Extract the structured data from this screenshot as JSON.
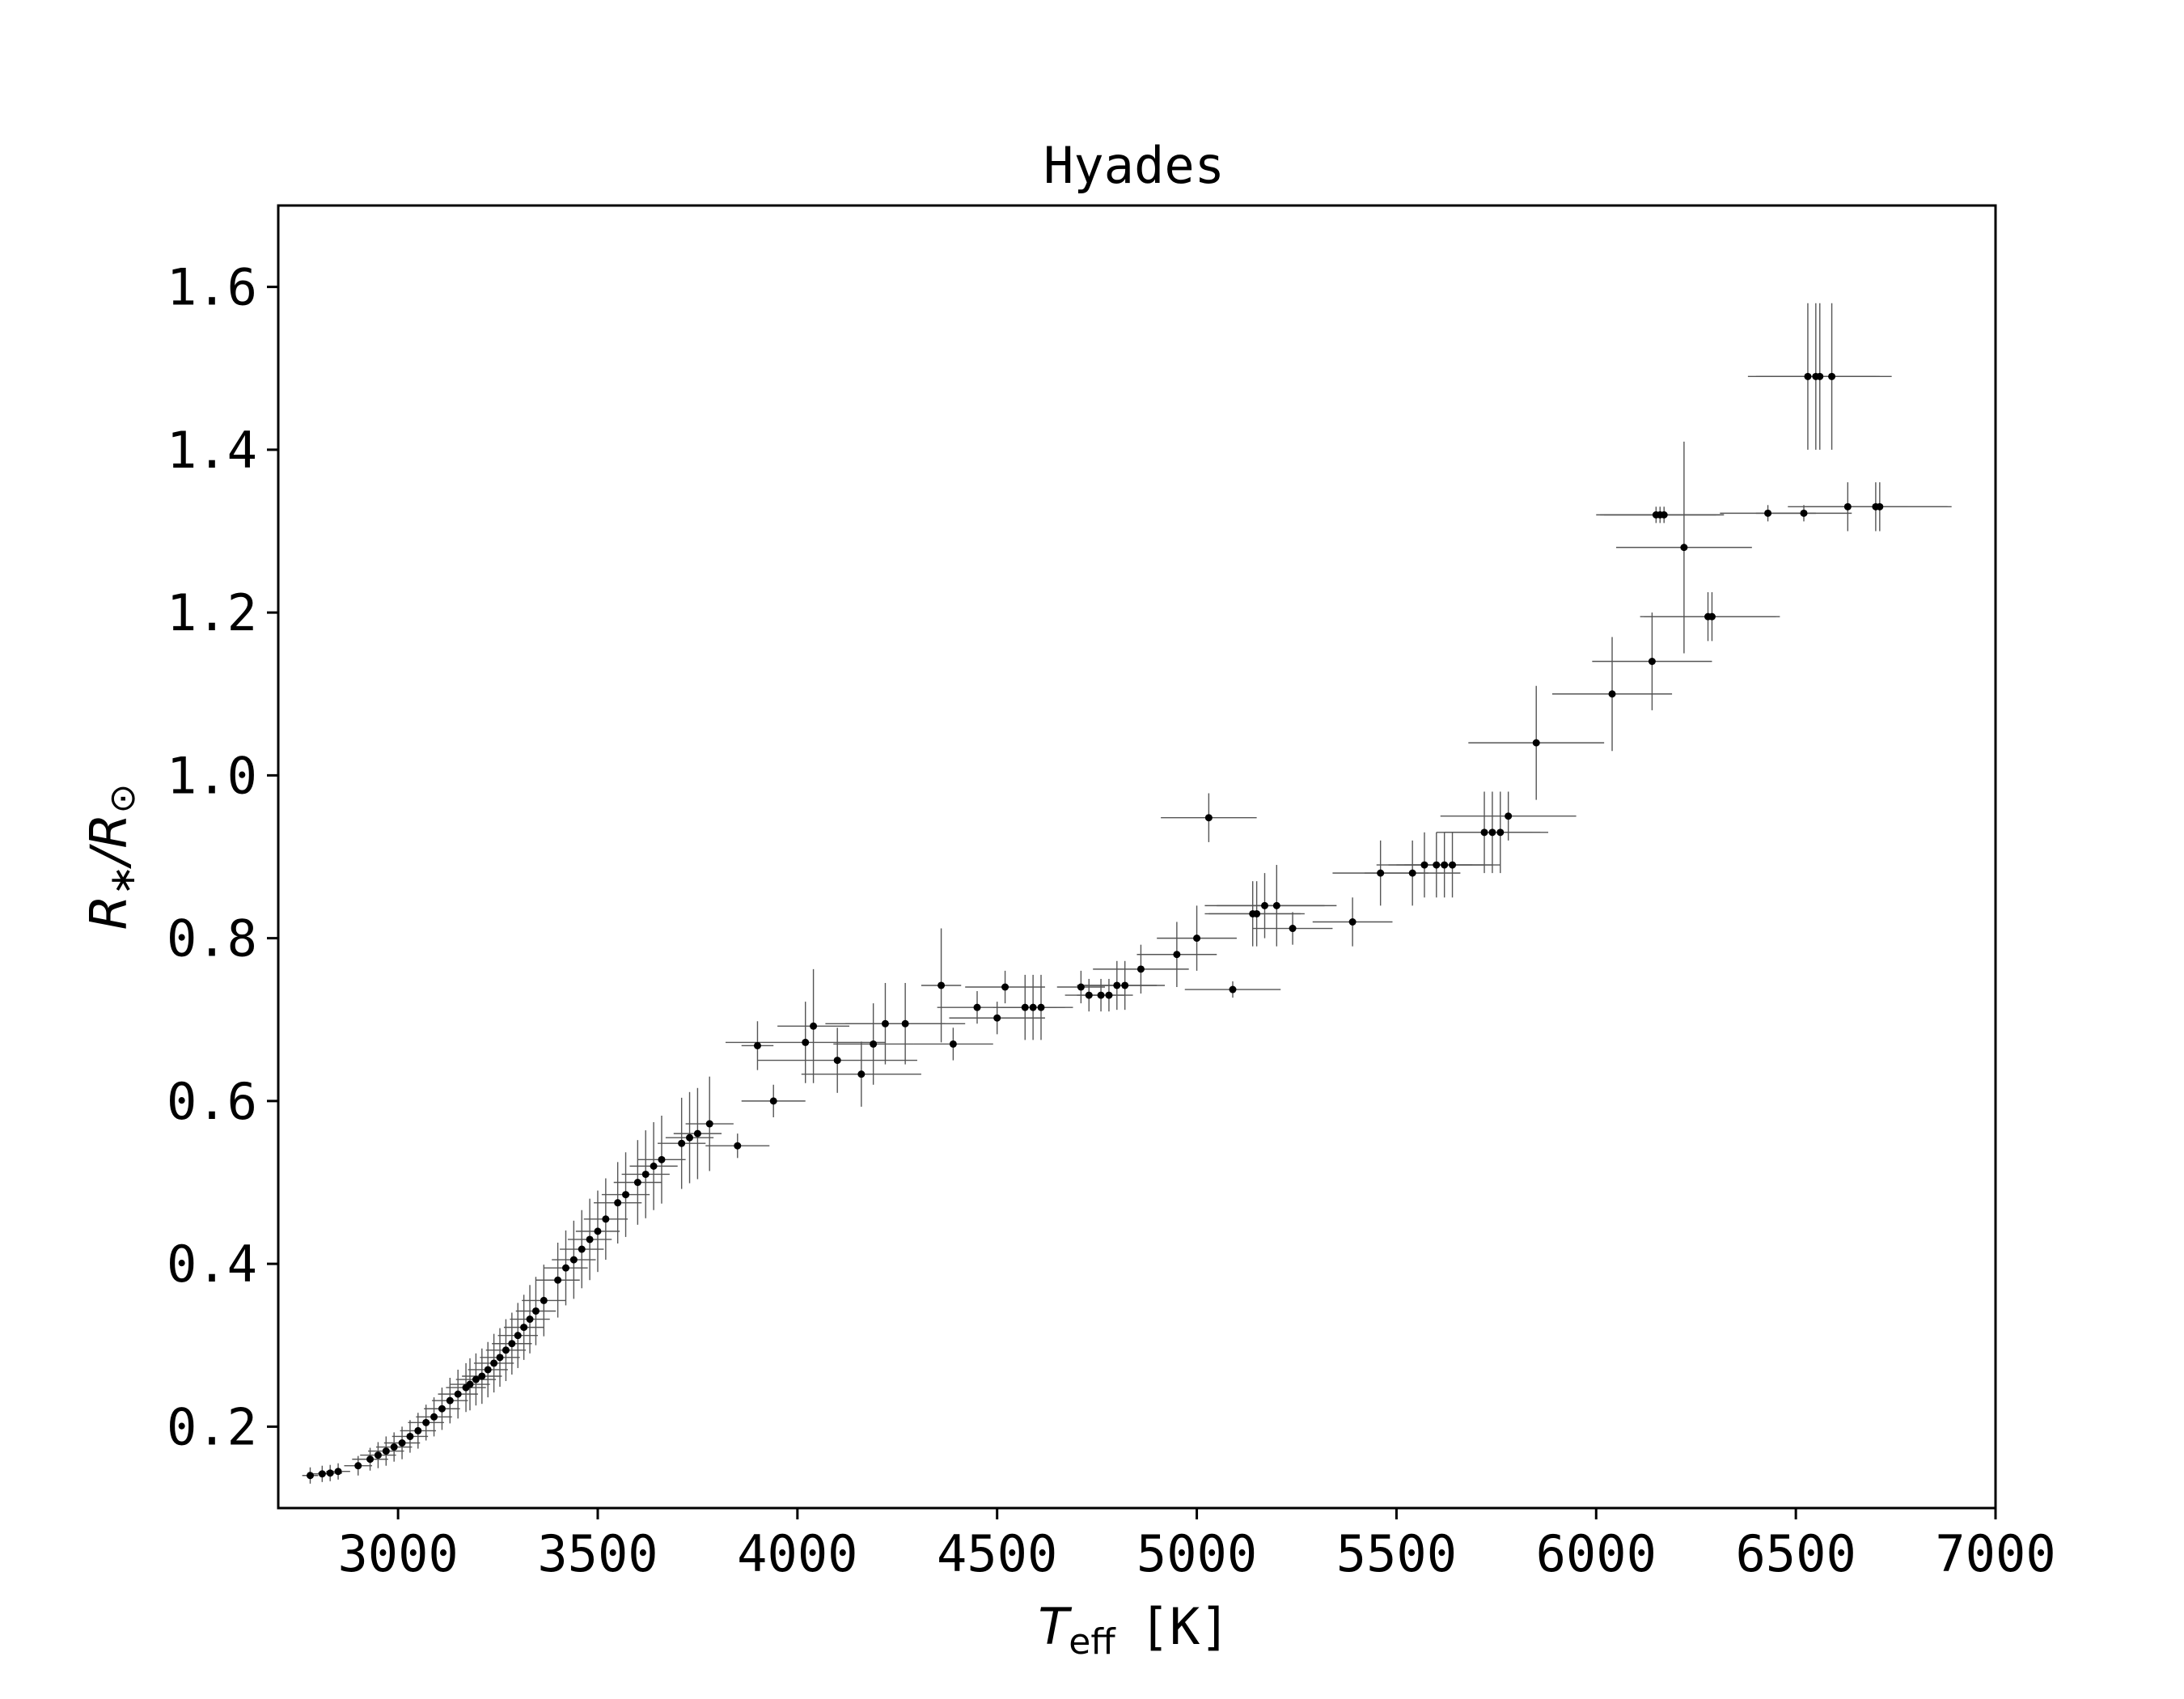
{
  "chart_data": {
    "type": "scatter",
    "title": "Hyades",
    "xlabel": {
      "symbol": "T",
      "subscript": "eff",
      "unit": "[K]"
    },
    "ylabel": {
      "symbol": "R",
      "subscript": "∗",
      "slash": "/",
      "denominator": "R",
      "denominator_subscript": "⊙"
    },
    "xlim": [
      2700,
      7000
    ],
    "ylim": [
      0.1,
      1.7
    ],
    "xticks": [
      3000,
      3500,
      4000,
      4500,
      5000,
      5500,
      6000,
      6500,
      7000
    ],
    "xtick_labels": [
      "3000",
      "3500",
      "4000",
      "4500",
      "5000",
      "5500",
      "6000",
      "6500",
      "7000"
    ],
    "yticks": [
      0.2,
      0.4,
      0.6,
      0.8,
      1.0,
      1.2,
      1.4,
      1.6
    ],
    "ytick_labels": [
      "0.2",
      "0.4",
      "0.6",
      "0.8",
      "1.0",
      "1.2",
      "1.4",
      "1.6"
    ],
    "grid": false,
    "marker_color": "#000000",
    "errorbar_color": "#555555",
    "points": [
      [
        2780,
        0.14,
        20,
        0.01
      ],
      [
        2810,
        0.142,
        25,
        0.01
      ],
      [
        2830,
        0.143,
        30,
        0.01
      ],
      [
        2850,
        0.145,
        30,
        0.01
      ],
      [
        2900,
        0.152,
        35,
        0.012
      ],
      [
        2930,
        0.16,
        45,
        0.014
      ],
      [
        2950,
        0.165,
        45,
        0.016
      ],
      [
        2970,
        0.17,
        45,
        0.018
      ],
      [
        2990,
        0.175,
        45,
        0.018
      ],
      [
        3010,
        0.18,
        45,
        0.02
      ],
      [
        3030,
        0.188,
        45,
        0.02
      ],
      [
        3050,
        0.195,
        45,
        0.022
      ],
      [
        3070,
        0.205,
        45,
        0.022
      ],
      [
        3090,
        0.212,
        45,
        0.024
      ],
      [
        3110,
        0.222,
        45,
        0.026
      ],
      [
        3130,
        0.232,
        45,
        0.028
      ],
      [
        3150,
        0.24,
        50,
        0.03
      ],
      [
        3170,
        0.248,
        50,
        0.03
      ],
      [
        3180,
        0.252,
        50,
        0.032
      ],
      [
        3195,
        0.258,
        50,
        0.032
      ],
      [
        3210,
        0.262,
        50,
        0.034
      ],
      [
        3225,
        0.27,
        50,
        0.034
      ],
      [
        3240,
        0.278,
        50,
        0.036
      ],
      [
        3255,
        0.285,
        50,
        0.036
      ],
      [
        3270,
        0.294,
        50,
        0.038
      ],
      [
        3285,
        0.302,
        50,
        0.038
      ],
      [
        3300,
        0.312,
        50,
        0.04
      ],
      [
        3315,
        0.322,
        50,
        0.04
      ],
      [
        3330,
        0.332,
        50,
        0.042
      ],
      [
        3345,
        0.342,
        50,
        0.042
      ],
      [
        3365,
        0.355,
        55,
        0.044
      ],
      [
        3400,
        0.38,
        55,
        0.046
      ],
      [
        3420,
        0.395,
        55,
        0.046
      ],
      [
        3440,
        0.405,
        55,
        0.048
      ],
      [
        3460,
        0.418,
        55,
        0.048
      ],
      [
        3480,
        0.43,
        55,
        0.05
      ],
      [
        3500,
        0.44,
        55,
        0.05
      ],
      [
        3520,
        0.455,
        55,
        0.05
      ],
      [
        3550,
        0.475,
        60,
        0.05
      ],
      [
        3570,
        0.485,
        60,
        0.052
      ],
      [
        3600,
        0.5,
        60,
        0.052
      ],
      [
        3620,
        0.51,
        60,
        0.054
      ],
      [
        3640,
        0.52,
        60,
        0.054
      ],
      [
        3660,
        0.528,
        60,
        0.054
      ],
      [
        3710,
        0.548,
        60,
        0.056
      ],
      [
        3730,
        0.555,
        60,
        0.056
      ],
      [
        3750,
        0.56,
        60,
        0.056
      ],
      [
        3780,
        0.572,
        60,
        0.058
      ],
      [
        3850,
        0.545,
        80,
        0.015
      ],
      [
        3900,
        0.668,
        40,
        0.03
      ],
      [
        3940,
        0.6,
        80,
        0.02
      ],
      [
        4020,
        0.672,
        200,
        0.05
      ],
      [
        4040,
        0.692,
        90,
        0.07
      ],
      [
        4100,
        0.65,
        200,
        0.04
      ],
      [
        4160,
        0.633,
        150,
        0.04
      ],
      [
        4190,
        0.67,
        100,
        0.05
      ],
      [
        4220,
        0.695,
        150,
        0.05
      ],
      [
        4270,
        0.695,
        150,
        0.05
      ],
      [
        4360,
        0.742,
        50,
        0.07
      ],
      [
        4390,
        0.67,
        100,
        0.02
      ],
      [
        4450,
        0.715,
        100,
        0.02
      ],
      [
        4500,
        0.702,
        120,
        0.02
      ],
      [
        4520,
        0.74,
        100,
        0.02
      ],
      [
        4570,
        0.715,
        80,
        0.04
      ],
      [
        4590,
        0.715,
        80,
        0.04
      ],
      [
        4610,
        0.715,
        80,
        0.04
      ],
      [
        4710,
        0.74,
        60,
        0.02
      ],
      [
        4730,
        0.73,
        60,
        0.02
      ],
      [
        4760,
        0.73,
        60,
        0.02
      ],
      [
        4780,
        0.73,
        60,
        0.02
      ],
      [
        4800,
        0.742,
        100,
        0.03
      ],
      [
        4820,
        0.742,
        100,
        0.03
      ],
      [
        4860,
        0.762,
        120,
        0.03
      ],
      [
        4950,
        0.78,
        100,
        0.04
      ],
      [
        5000,
        0.8,
        100,
        0.04
      ],
      [
        5030,
        0.948,
        120,
        0.03
      ],
      [
        5090,
        0.737,
        120,
        0.01
      ],
      [
        5140,
        0.83,
        120,
        0.04
      ],
      [
        5150,
        0.83,
        120,
        0.04
      ],
      [
        5170,
        0.84,
        150,
        0.04
      ],
      [
        5200,
        0.84,
        150,
        0.05
      ],
      [
        5240,
        0.812,
        100,
        0.02
      ],
      [
        5390,
        0.82,
        100,
        0.03
      ],
      [
        5460,
        0.88,
        120,
        0.04
      ],
      [
        5540,
        0.88,
        120,
        0.04
      ],
      [
        5570,
        0.89,
        120,
        0.04
      ],
      [
        5600,
        0.89,
        120,
        0.04
      ],
      [
        5620,
        0.89,
        120,
        0.04
      ],
      [
        5640,
        0.89,
        120,
        0.04
      ],
      [
        5720,
        0.93,
        120,
        0.05
      ],
      [
        5740,
        0.93,
        120,
        0.05
      ],
      [
        5760,
        0.93,
        120,
        0.05
      ],
      [
        5780,
        0.95,
        170,
        0.03
      ],
      [
        5850,
        1.04,
        170,
        0.07
      ],
      [
        6040,
        1.1,
        150,
        0.07
      ],
      [
        6140,
        1.14,
        150,
        0.06
      ],
      [
        6150,
        1.32,
        150,
        0.01
      ],
      [
        6160,
        1.32,
        150,
        0.01
      ],
      [
        6170,
        1.32,
        150,
        0.01
      ],
      [
        6220,
        1.28,
        170,
        0.13
      ],
      [
        6280,
        1.195,
        170,
        0.03
      ],
      [
        6290,
        1.195,
        170,
        0.03
      ],
      [
        6430,
        1.322,
        120,
        0.01
      ],
      [
        6520,
        1.322,
        120,
        0.01
      ],
      [
        6530,
        1.49,
        150,
        0.09
      ],
      [
        6550,
        1.49,
        150,
        0.09
      ],
      [
        6560,
        1.49,
        150,
        0.09
      ],
      [
        6590,
        1.49,
        150,
        0.09
      ],
      [
        6630,
        1.33,
        150,
        0.03
      ],
      [
        6700,
        1.33,
        180,
        0.03
      ],
      [
        6710,
        1.33,
        180,
        0.03
      ]
    ]
  }
}
